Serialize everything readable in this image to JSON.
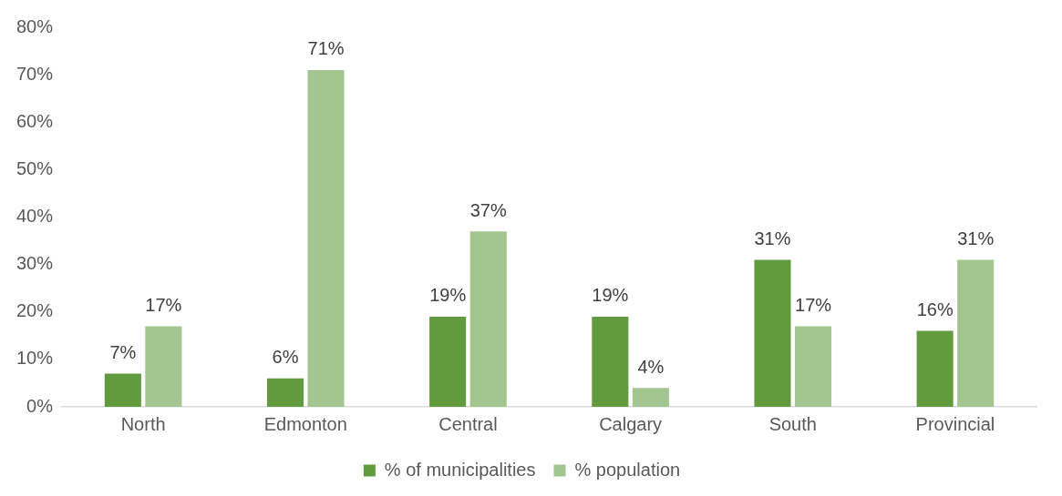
{
  "chart_data": {
    "type": "bar",
    "categories": [
      "North",
      "Edmonton",
      "Central",
      "Calgary",
      "South",
      "Provincial"
    ],
    "series": [
      {
        "name": "% of municipalities",
        "color": "#629b3e",
        "values": [
          7,
          6,
          19,
          19,
          31,
          16
        ],
        "value_labels": [
          "7%",
          "6%",
          "19%",
          "19%",
          "31%",
          "16%"
        ]
      },
      {
        "name": "% population",
        "color": "#a3c590",
        "values": [
          17,
          71,
          37,
          4,
          17,
          31
        ],
        "value_labels": [
          "17%",
          "71%",
          "37%",
          "4%",
          "17%",
          "31%"
        ]
      }
    ],
    "ylim": [
      0,
      80
    ],
    "yticks": [
      {
        "value": 0,
        "label": "0%"
      },
      {
        "value": 10,
        "label": "10%"
      },
      {
        "value": 20,
        "label": "20%"
      },
      {
        "value": 30,
        "label": "30%"
      },
      {
        "value": 40,
        "label": "40%"
      },
      {
        "value": 50,
        "label": "50%"
      },
      {
        "value": 60,
        "label": "60%"
      },
      {
        "value": 70,
        "label": "70%"
      },
      {
        "value": 80,
        "label": "80%"
      }
    ],
    "grid": false,
    "legend": "bottom"
  }
}
